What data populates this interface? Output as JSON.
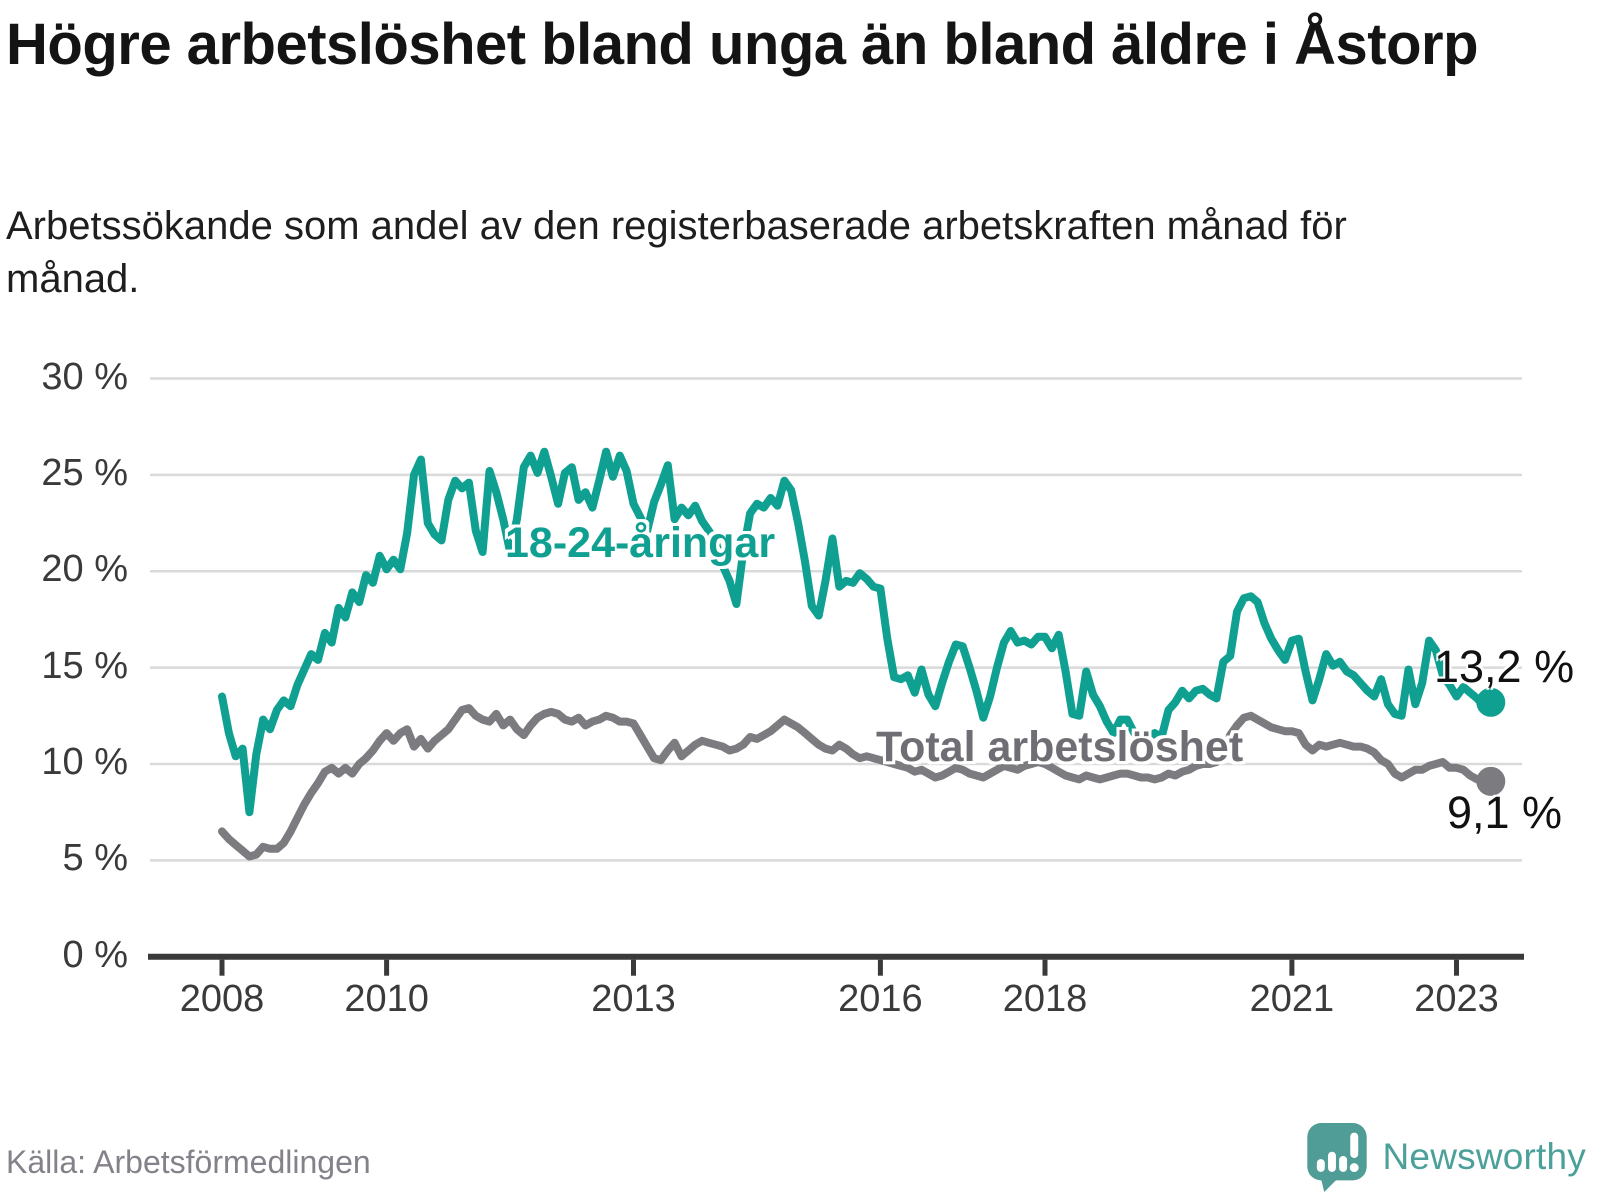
{
  "title": "Högre arbetslöshet bland unga än bland äldre i Åstorp",
  "subtitle": "Arbetssökande som andel av den registerbaserade arbetskraften månad för månad.",
  "source": "Källa: Arbetsförmedlingen",
  "branding": {
    "name": "Newsworthy",
    "icon": "newsworthy-chart-bubble-icon"
  },
  "colors": {
    "youth_line": "#10A091",
    "total_line": "#7B7B80",
    "total_label": "#6F6E74",
    "grid": "#DADADA",
    "axis": "#3A3A3A",
    "brand_teal": "#4BA09A"
  },
  "chart_data": {
    "type": "line",
    "title": "Högre arbetslöshet bland unga än bland äldre i Åstorp",
    "frequency": "monthly",
    "x_start": "2008-01",
    "x_end": "2023-06",
    "x_ticks": [
      2008,
      2010,
      2013,
      2016,
      2018,
      2021,
      2023
    ],
    "y_ticks": [
      0,
      5,
      10,
      15,
      20,
      25,
      30
    ],
    "y_tick_suffix": " %",
    "ylim": [
      0,
      30
    ],
    "grid": true,
    "series": [
      {
        "name": "18-24-åringar",
        "color": "#10A091",
        "end_label": "13,2 %",
        "end_value": 13.2,
        "values": [
          13.5,
          11.6,
          10.4,
          10.8,
          7.5,
          10.5,
          12.3,
          11.8,
          12.8,
          13.3,
          13.0,
          14.1,
          14.9,
          15.7,
          15.4,
          16.8,
          16.3,
          18.1,
          17.6,
          18.9,
          18.4,
          19.8,
          19.4,
          20.8,
          20.1,
          20.6,
          20.1,
          22.0,
          25.0,
          25.8,
          22.5,
          21.9,
          21.6,
          23.7,
          24.7,
          24.3,
          24.6,
          22.1,
          21.0,
          25.2,
          24.1,
          22.7,
          21.0,
          22.7,
          25.4,
          26.0,
          25.1,
          26.2,
          24.9,
          23.5,
          25.1,
          25.4,
          23.7,
          24.1,
          23.3,
          24.7,
          26.2,
          24.9,
          26.0,
          25.2,
          23.5,
          22.8,
          22.1,
          23.6,
          24.5,
          25.5,
          22.7,
          23.3,
          22.9,
          23.4,
          22.6,
          22.1,
          21.5,
          20.3,
          19.5,
          18.3,
          21.0,
          23.0,
          23.5,
          23.3,
          23.8,
          23.4,
          24.7,
          24.2,
          22.5,
          20.5,
          18.2,
          17.7,
          19.5,
          21.7,
          19.2,
          19.5,
          19.4,
          19.9,
          19.6,
          19.2,
          19.1,
          16.5,
          14.5,
          14.4,
          14.6,
          13.7,
          14.9,
          13.6,
          13.0,
          14.2,
          15.3,
          16.2,
          16.1,
          15.0,
          13.8,
          12.4,
          13.5,
          15.0,
          16.3,
          16.9,
          16.3,
          16.4,
          16.2,
          16.6,
          16.6,
          16.0,
          16.7,
          14.8,
          12.6,
          12.5,
          14.8,
          13.6,
          13.0,
          12.2,
          11.6,
          12.3,
          12.3,
          11.6,
          11.4,
          11.3,
          11.6,
          11.4,
          12.8,
          13.2,
          13.8,
          13.4,
          13.8,
          13.9,
          13.6,
          13.4,
          15.3,
          15.6,
          17.9,
          18.6,
          18.7,
          18.4,
          17.3,
          16.5,
          15.9,
          15.4,
          16.4,
          16.5,
          14.8,
          13.3,
          14.4,
          15.7,
          15.1,
          15.3,
          14.8,
          14.6,
          14.2,
          13.8,
          13.5,
          14.4,
          13.1,
          12.6,
          12.5,
          14.9,
          13.1,
          14.2,
          16.4,
          15.9,
          14.6,
          14.1,
          13.5,
          14.0,
          13.7,
          13.4,
          13.0,
          13.2
        ]
      },
      {
        "name": "Total arbetslöshet",
        "color": "#7B7B80",
        "end_label": "9,1 %",
        "end_value": 9.1,
        "values": [
          6.5,
          6.1,
          5.8,
          5.5,
          5.2,
          5.3,
          5.7,
          5.6,
          5.6,
          5.9,
          6.5,
          7.2,
          7.9,
          8.5,
          9.0,
          9.6,
          9.8,
          9.5,
          9.8,
          9.5,
          10.0,
          10.3,
          10.7,
          11.2,
          11.6,
          11.2,
          11.6,
          11.8,
          10.9,
          11.3,
          10.8,
          11.2,
          11.5,
          11.8,
          12.3,
          12.8,
          12.9,
          12.5,
          12.3,
          12.2,
          12.6,
          12.0,
          12.3,
          11.8,
          11.5,
          12.0,
          12.4,
          12.6,
          12.7,
          12.6,
          12.3,
          12.2,
          12.4,
          12.0,
          12.2,
          12.3,
          12.5,
          12.4,
          12.2,
          12.2,
          12.1,
          11.5,
          10.9,
          10.3,
          10.2,
          10.7,
          11.1,
          10.4,
          10.7,
          11.0,
          11.2,
          11.1,
          11.0,
          10.9,
          10.7,
          10.8,
          11.0,
          11.4,
          11.3,
          11.5,
          11.7,
          12.0,
          12.3,
          12.1,
          11.9,
          11.6,
          11.3,
          11.0,
          10.8,
          10.7,
          11.0,
          10.8,
          10.5,
          10.3,
          10.4,
          10.3,
          10.2,
          10.1,
          10.0,
          9.9,
          9.8,
          9.6,
          9.7,
          9.5,
          9.3,
          9.4,
          9.6,
          9.8,
          9.7,
          9.5,
          9.4,
          9.3,
          9.5,
          9.7,
          9.9,
          9.8,
          9.7,
          9.9,
          10.0,
          10.1,
          10.0,
          9.8,
          9.6,
          9.4,
          9.3,
          9.2,
          9.4,
          9.3,
          9.2,
          9.3,
          9.4,
          9.5,
          9.5,
          9.4,
          9.3,
          9.3,
          9.2,
          9.3,
          9.5,
          9.4,
          9.6,
          9.7,
          9.9,
          10.0,
          10.0,
          10.1,
          10.6,
          11.5,
          12.0,
          12.4,
          12.5,
          12.3,
          12.1,
          11.9,
          11.8,
          11.7,
          11.7,
          11.6,
          11.0,
          10.7,
          11.0,
          10.9,
          11.0,
          11.1,
          11.0,
          10.9,
          10.9,
          10.8,
          10.6,
          10.2,
          10.0,
          9.5,
          9.3,
          9.5,
          9.7,
          9.7,
          9.9,
          10.0,
          10.1,
          9.8,
          9.8,
          9.7,
          9.4,
          9.2,
          9.3,
          9.1
        ]
      }
    ]
  }
}
